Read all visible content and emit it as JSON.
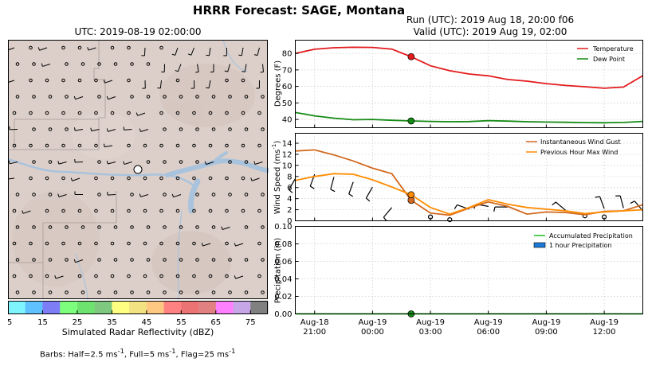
{
  "suptitle": "HRRR Forecast: SAGE, Montana",
  "map": {
    "title": "UTC: 2019-08-19 02:00:00",
    "colors": {
      "land": "#dccfc9",
      "water": "#a9c3dd",
      "border": "#a59a98"
    }
  },
  "colorbar": {
    "label": "Simulated Radar Reflectivity (dBZ)",
    "ticks": [
      "5",
      "15",
      "25",
      "35",
      "45",
      "55",
      "65",
      "75"
    ],
    "colors": [
      "#7ef4fe",
      "#5fc2ff",
      "#7d7df6",
      "#7dff7d",
      "#6ee26e",
      "#7fc87f",
      "#ffff82",
      "#f2e282",
      "#ffc882",
      "#ff8282",
      "#ec7373",
      "#e08080",
      "#ff80ff",
      "#c6a6e6",
      "#808080"
    ]
  },
  "barbs_note": {
    "prefix": "Barbs: Half=2.5 ms",
    "exp1": "-1",
    "mid1": ", Full=5 ms",
    "exp2": "-1",
    "mid2": ", Flag=25 ms",
    "exp3": "-1"
  },
  "header": {
    "run": "Run (UTC): 2019 Aug 18, 20:00 f06",
    "valid": "Valid (UTC): 2019 Aug 19, 02:00"
  },
  "chart_data": [
    {
      "type": "line",
      "ylabel": "Degrees (F)",
      "ylim": [
        35,
        88
      ],
      "yticks": [
        "40",
        "50",
        "60",
        "70",
        "80"
      ],
      "grid": true,
      "legend_position": "top-right",
      "series": [
        {
          "name": "Temperature",
          "color": "#e31a1c",
          "values": [
            80,
            82.5,
            83.4,
            83.7,
            83.6,
            82.6,
            78,
            72.5,
            69.5,
            67.5,
            66.4,
            64.2,
            63.2,
            61.7,
            60.6,
            59.8,
            58.9,
            59.6,
            66.5
          ]
        },
        {
          "name": "Dew Point",
          "color": "#158a15",
          "values": [
            44.2,
            42.2,
            40.8,
            39.8,
            40,
            39.5,
            39.1,
            38.8,
            38.6,
            38.7,
            39.3,
            39,
            38.6,
            38.4,
            38.3,
            38.1,
            38,
            38.2,
            38.8
          ]
        }
      ],
      "markers": [
        {
          "x": 6,
          "y": 78,
          "color": "#e31a1c"
        },
        {
          "x": 6,
          "y": 39.1,
          "color": "#158a15"
        }
      ]
    },
    {
      "type": "line",
      "ylabel": "Wind Speed (ms",
      "ylabel_exp": "-1",
      "ylabel_suffix": ")",
      "ylim": [
        0,
        15.8
      ],
      "yticks": [
        "0",
        "2",
        "4",
        "6",
        "8",
        "10",
        "12",
        "14"
      ],
      "grid": true,
      "legend_position": "top-right",
      "series": [
        {
          "name": "Instantaneous Wind Gust",
          "color": "#d2691e",
          "values": [
            12.6,
            12.8,
            11.9,
            10.8,
            9.5,
            8.5,
            3.7,
            1.4,
            1,
            2.3,
            3.4,
            2.6,
            1.2,
            1.6,
            1.5,
            1.1,
            1.7,
            1.8,
            2.9
          ]
        },
        {
          "name": "Previous Hour Max Wind",
          "color": "#ff8c00",
          "values": [
            7.3,
            8,
            8.5,
            8.4,
            7.4,
            6.1,
            4.7,
            2.4,
            1.2,
            2.4,
            3.8,
            3,
            2.4,
            2.1,
            1.8,
            1.3,
            1.6,
            1.8,
            2
          ]
        }
      ],
      "markers": [
        {
          "x": 6,
          "y": 3.7,
          "color": "#d2691e"
        },
        {
          "x": 6,
          "y": 4.7,
          "color": "#ff8c00"
        }
      ],
      "barbs": [
        {
          "x": 0,
          "y": 7.6,
          "dir": 210
        },
        {
          "x": 1,
          "y": 8.4,
          "dir": 200
        },
        {
          "x": 2,
          "y": 7.9,
          "dir": 195
        },
        {
          "x": 3,
          "y": 7.0,
          "dir": 200
        },
        {
          "x": 4,
          "y": 6.1,
          "dir": 210
        },
        {
          "x": 5,
          "y": 2.4,
          "dir": 220
        },
        {
          "x": 9,
          "y": 2.1,
          "dir": 290
        },
        {
          "x": 10,
          "y": 2.6,
          "dir": 280
        },
        {
          "x": 11,
          "y": 2.5,
          "dir": 270
        },
        {
          "x": 14,
          "y": 1.9,
          "dir": 310
        },
        {
          "x": 16,
          "y": 2.2,
          "dir": 340
        },
        {
          "x": 17,
          "y": 2.3,
          "dir": 345
        },
        {
          "x": 18,
          "y": 1.8,
          "dir": 320
        }
      ],
      "calm": [
        {
          "x": 7,
          "y": 0.7
        },
        {
          "x": 8,
          "y": 0.2
        },
        {
          "x": 15,
          "y": 0.9
        },
        {
          "x": 16,
          "y": 0.7
        }
      ]
    },
    {
      "type": "line",
      "ylabel": "Precipitation (in)",
      "ylim": [
        0,
        0.1
      ],
      "yticks": [
        "0.00",
        "0.02",
        "0.04",
        "0.06",
        "0.08",
        "0.10"
      ],
      "grid": true,
      "legend_position": "top-right",
      "series": [
        {
          "name": "Accumulated Precipitation",
          "color": "#1fbf1f",
          "values": [
            0,
            0,
            0,
            0,
            0,
            0,
            0,
            0,
            0,
            0,
            0,
            0,
            0,
            0,
            0,
            0,
            0,
            0,
            0
          ]
        }
      ],
      "bars": {
        "name": "1 hour Precipitation",
        "color": "#1e7ad8",
        "values": [
          0,
          0,
          0,
          0,
          0,
          0,
          0,
          0,
          0,
          0,
          0,
          0,
          0,
          0,
          0,
          0,
          0,
          0,
          0
        ]
      },
      "markers": [
        {
          "x": 6,
          "y": 0,
          "color": "#158a15"
        }
      ]
    }
  ],
  "xaxis": {
    "tick_positions": [
      1,
      4,
      7,
      10,
      13,
      16
    ],
    "labels": [
      {
        "date": "Aug-18",
        "time": "21:00"
      },
      {
        "date": "Aug-19",
        "time": "00:00"
      },
      {
        "date": "Aug-19",
        "time": "03:00"
      },
      {
        "date": "Aug-19",
        "time": "06:00"
      },
      {
        "date": "Aug-19",
        "time": "09:00"
      },
      {
        "date": "Aug-19",
        "time": "12:00"
      }
    ]
  }
}
